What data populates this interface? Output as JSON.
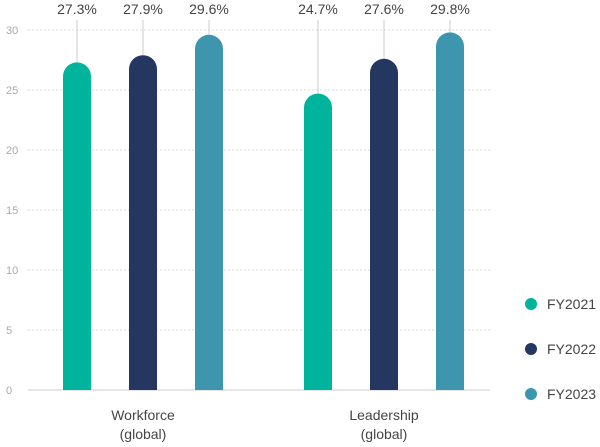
{
  "chart_data": {
    "type": "bar",
    "categories": [
      [
        "Workforce",
        "(global)"
      ],
      [
        "Leadership",
        "(global)"
      ]
    ],
    "series": [
      {
        "name": "FY2021",
        "color": "#00b39c",
        "values": [
          27.3,
          24.7
        ],
        "labels": [
          "27.3%",
          "24.7%"
        ]
      },
      {
        "name": "FY2022",
        "color": "#243760",
        "values": [
          27.9,
          27.6
        ],
        "labels": [
          "27.9%",
          "27.6%"
        ]
      },
      {
        "name": "FY2023",
        "color": "#3e96ae",
        "values": [
          29.6,
          29.8
        ],
        "labels": [
          "29.6%",
          "29.8%"
        ]
      }
    ],
    "ylim": [
      0,
      30
    ],
    "yticks": [
      0,
      5,
      10,
      15,
      20,
      25,
      30
    ],
    "grid": true,
    "legend": "right"
  }
}
